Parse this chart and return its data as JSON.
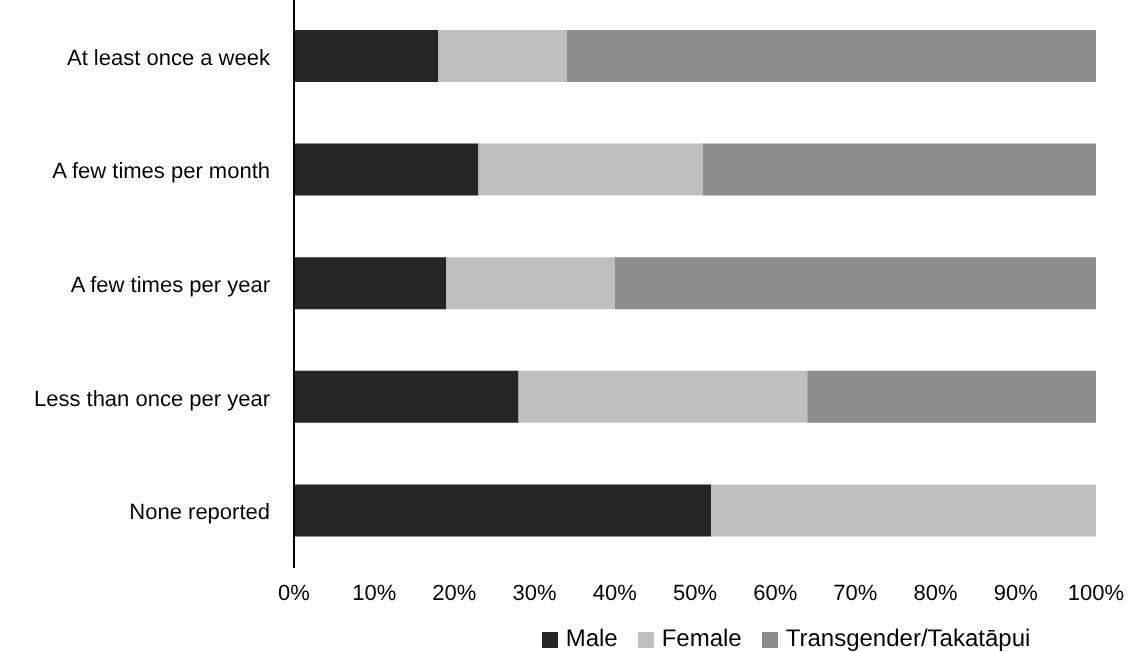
{
  "chart_data": {
    "type": "bar",
    "orientation": "horizontal",
    "stacked": true,
    "categories": [
      "At least once a week",
      "A few times per month",
      "A few times per year",
      "Less than once per year",
      "None reported"
    ],
    "series": [
      {
        "name": "Male",
        "color": "#262626",
        "values": [
          18,
          23,
          19,
          28,
          52
        ]
      },
      {
        "name": "Female",
        "color": "#bfbfbf",
        "values": [
          16,
          28,
          21,
          36,
          48
        ]
      },
      {
        "name": "Transgender/Takatāpui",
        "color": "#8c8c8c",
        "values": [
          66,
          49,
          60,
          36,
          0
        ]
      }
    ],
    "xlim": [
      0,
      100
    ],
    "xticks": [
      {
        "value": 0,
        "label": "0%"
      },
      {
        "value": 10,
        "label": "10%"
      },
      {
        "value": 20,
        "label": "20%"
      },
      {
        "value": 30,
        "label": "30%"
      },
      {
        "value": 40,
        "label": "40%"
      },
      {
        "value": 50,
        "label": "50%"
      },
      {
        "value": 60,
        "label": "60%"
      },
      {
        "value": 70,
        "label": "70%"
      },
      {
        "value": 80,
        "label": "80%"
      },
      {
        "value": 90,
        "label": "90%"
      },
      {
        "value": 100,
        "label": "100%"
      }
    ],
    "grid": false,
    "legend": "bottom"
  }
}
